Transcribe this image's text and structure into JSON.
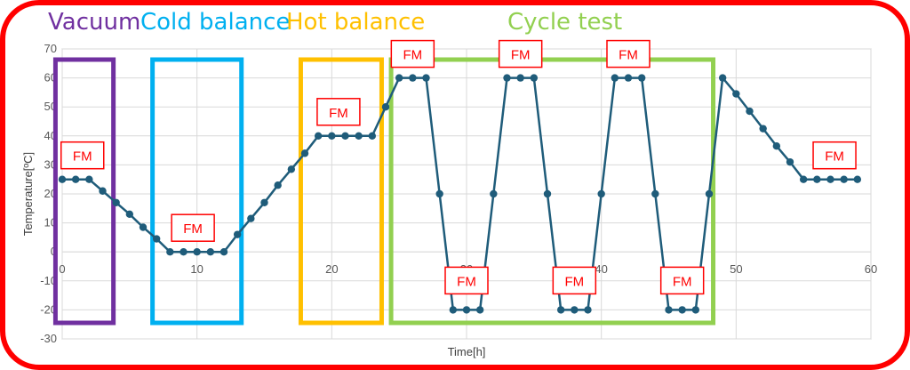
{
  "phases": [
    {
      "label": "Vacuum",
      "color": "#7030a0"
    },
    {
      "label": "Cold balance",
      "color": "#00b0f0"
    },
    {
      "label": "Hot balance",
      "color": "#ffc000"
    },
    {
      "label": "Cycle test",
      "color": "#92d050"
    }
  ],
  "colors": {
    "border": "#ff0000",
    "series": "#1f5c7a",
    "fm_label": "#ff0000",
    "grid": "#d9d9d9"
  },
  "fm_label": "FM",
  "chart_data": {
    "type": "line",
    "title": "",
    "xlabel": "Time[h]",
    "ylabel": "Temperature[ºC]",
    "xlim": [
      0,
      60
    ],
    "ylim": [
      -30,
      70
    ],
    "xticks": [
      0,
      10,
      20,
      30,
      40,
      50,
      60
    ],
    "yticks": [
      -30,
      -20,
      -10,
      0,
      10,
      20,
      30,
      40,
      50,
      60,
      70
    ],
    "grid": true,
    "series": [
      {
        "x": [
          0,
          1,
          2,
          3,
          4,
          5,
          6,
          7,
          8,
          9,
          10,
          11,
          12,
          13,
          14,
          15,
          16,
          17,
          18,
          19,
          20,
          21,
          22,
          23,
          24,
          25,
          26,
          27,
          28,
          29,
          30,
          31,
          32,
          33,
          34,
          35,
          36,
          37,
          38,
          39,
          40,
          41,
          42,
          43,
          44,
          45,
          46,
          47,
          48,
          49,
          50,
          51,
          52,
          53,
          54,
          55,
          56,
          57,
          58,
          59
        ],
        "y": [
          25,
          25,
          25,
          21,
          17,
          13,
          8.5,
          4.5,
          0,
          0,
          0,
          0,
          0,
          6,
          11.5,
          17,
          23,
          28.5,
          34,
          40,
          40,
          40,
          40,
          40,
          50,
          60,
          60,
          60,
          20,
          -20,
          -20,
          -20,
          20,
          60,
          60,
          60,
          20,
          -20,
          -20,
          -20,
          20,
          60,
          60,
          60,
          20,
          -20,
          -20,
          -20,
          20,
          60,
          54.5,
          48.5,
          42.5,
          36.5,
          31,
          25,
          25,
          25,
          25,
          25
        ]
      }
    ],
    "phase_boxes": [
      {
        "phase": "Vacuum",
        "x": [
          -0.5,
          3.8
        ]
      },
      {
        "phase": "Cold balance",
        "x": [
          6.7,
          13.3
        ]
      },
      {
        "phase": "Hot balance",
        "x": [
          17.7,
          23.7
        ]
      },
      {
        "phase": "Cycle test",
        "x": [
          24.4,
          48.3
        ]
      }
    ],
    "fm_markers": [
      {
        "x": 1.5,
        "y": 25
      },
      {
        "x": 9.7,
        "y": 0
      },
      {
        "x": 20.5,
        "y": 40
      },
      {
        "x": 26.0,
        "y": 60
      },
      {
        "x": 30.0,
        "y": -20
      },
      {
        "x": 34.0,
        "y": 60
      },
      {
        "x": 38.0,
        "y": -20
      },
      {
        "x": 42.0,
        "y": 60
      },
      {
        "x": 46.0,
        "y": -20
      },
      {
        "x": 57.3,
        "y": 25
      }
    ]
  }
}
